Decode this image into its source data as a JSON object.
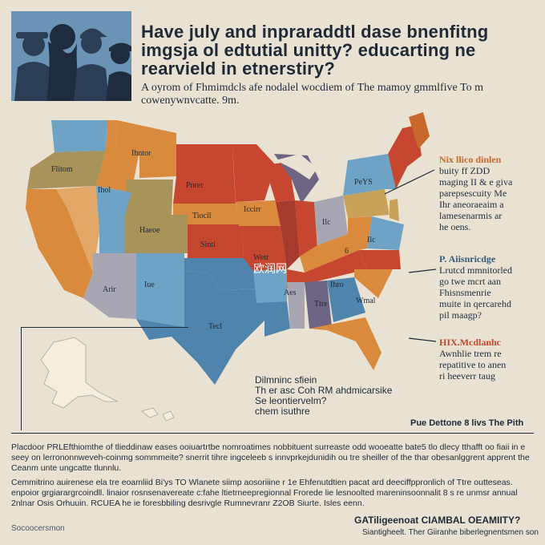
{
  "colors": {
    "background": "#e9e2d3",
    "orange": "#d98a3d",
    "burnt_orange": "#c8672a",
    "red": "#c7462f",
    "dark_red": "#a63a2c",
    "blue": "#6ea3c6",
    "steel_blue": "#4f84ad",
    "navy": "#2e4a68",
    "olive": "#a8935a",
    "grey": "#a7a6b2",
    "purple": "#6d6583"
  },
  "header": {
    "title": "Have july and inpraraddtl dase bnenfitng imgsja ol edtutial unitty? educarting ne rearvield in etnerstiry?",
    "subtitle": "A oyrom of Fhmimdcls afe nodalel wocdiem of The mamoy gmmlfive To m cowenywnvcatte. 9m."
  },
  "map": {
    "labels": [
      "Flitom",
      "Ihntor",
      "Ihol",
      "Pnrer",
      "Haeoe",
      "Tiocil",
      "Iccirr",
      "Sinti",
      "Arir",
      "Iue",
      "Tecl",
      "Aes",
      "Ttre",
      "PeYS",
      "Ilc",
      "Wetr",
      "Ilc",
      "Ihro",
      "Wmal",
      "6"
    ],
    "watermark": "欧润网",
    "inset_region": "alaska-inset"
  },
  "callouts": {
    "right1": {
      "heading": "Nix llico dinlen",
      "lines": [
        "buity ff ZDD",
        "maging II & e giva",
        "parepsescuity Me",
        "Ihr aneoraeaim a",
        "lamesenarmis ar",
        "he oens."
      ]
    },
    "right2": {
      "heading": "P. Aiisnricdge",
      "lines": [
        "Lrutcd mmnitorled",
        "go twe mcrt aan",
        "Fhisnsmenrie",
        "muite in qercarehd",
        "pil maagp?"
      ]
    },
    "right3": {
      "heading": "HIX.Mcdlanhc",
      "lines": [
        "Awnhlie trem re",
        "repatitive to anen",
        "ri heeverr taug"
      ]
    },
    "bottom_box": {
      "lines": [
        "Dilmninc sfiein",
        "Th er asc Coh RM ahdmicarsike",
        "Se leontiervelm?",
        "chem isuthre"
      ]
    },
    "bottom_right": "Pue Dettone 8 livs The Pith"
  },
  "footer": {
    "para1": "Placdoor PRLEfthiomthe of tlieddinaw eases ooiuartrtbe nomroatimes nobbituent surreaste odd wooeatte bate5 tlo dlecy tthafft oo fiaii in e seey on lerrononnweveh-coinmg sommmeite? snerrit tihre ingceleeb s innvprkejdunidih ou tre sheiller of the thar obesanlggrent apprent the Ceanm unte ungcatte tlunnlu.",
    "para2": "Cemmitrino auirenese ela tre eoamliid Bi'ys TO Wlanete siimp aosoriiine r 1e Ehfenutdtien pacat ard deeciffppronlich of Ttre outteseas. enpoior grgiarargrcoindll. linaior rosnsenavereate c:fahe ltietrneepregionnal Frorede lie lesnoolted mareninsoonnalit 8 s re unmsr annual 2nlnar Osis Orhuuin. RCUEA he ie foresbbiling desrivgle Rumnevranr Z2OB Siurte. Isles eenn.",
    "source": "Socoocersmon",
    "credit_title": "GATiligeenoat CIAMBAL OEAMIITY?",
    "credit_sub": "Siantigheelt. Ther Giiranhe biberlegnentsmen son"
  }
}
